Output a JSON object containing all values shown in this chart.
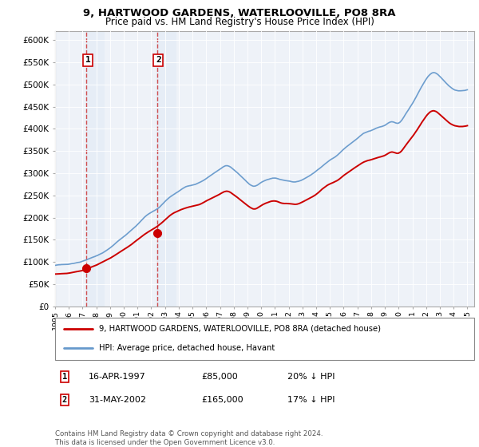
{
  "title1": "9, HARTWOOD GARDENS, WATERLOOVILLE, PO8 8RA",
  "title2": "Price paid vs. HM Land Registry's House Price Index (HPI)",
  "ylabel_ticks": [
    "£0",
    "£50K",
    "£100K",
    "£150K",
    "£200K",
    "£250K",
    "£300K",
    "£350K",
    "£400K",
    "£450K",
    "£500K",
    "£550K",
    "£600K"
  ],
  "ytick_values": [
    0,
    50000,
    100000,
    150000,
    200000,
    250000,
    300000,
    350000,
    400000,
    450000,
    500000,
    550000,
    600000
  ],
  "sale1_date": 1997.29,
  "sale1_price": 85000,
  "sale2_date": 2002.41,
  "sale2_price": 165000,
  "legend_line1": "9, HARTWOOD GARDENS, WATERLOOVILLE, PO8 8RA (detached house)",
  "legend_line2": "HPI: Average price, detached house, Havant",
  "table_row1": [
    "1",
    "16-APR-1997",
    "£85,000",
    "20% ↓ HPI"
  ],
  "table_row2": [
    "2",
    "31-MAY-2002",
    "£165,000",
    "17% ↓ HPI"
  ],
  "footnote": "Contains HM Land Registry data © Crown copyright and database right 2024.\nThis data is licensed under the Open Government Licence v3.0.",
  "hpi_color": "#6699cc",
  "price_color": "#cc0000",
  "sale_marker_color": "#cc0000",
  "vline_color": "#cc3333",
  "shading_color": "#dde8f5",
  "background_color": "#eef2f8",
  "grid_color": "#ffffff",
  "xmin": 1995,
  "xmax": 2025.5,
  "ymin": 0,
  "ymax": 620000,
  "hpi_keypoints_x": [
    1995.0,
    1995.5,
    1996.0,
    1996.5,
    1997.0,
    1997.5,
    1998.0,
    1998.5,
    1999.0,
    1999.5,
    2000.0,
    2000.5,
    2001.0,
    2001.5,
    2002.0,
    2002.5,
    2003.0,
    2003.5,
    2004.0,
    2004.5,
    2005.0,
    2005.5,
    2006.0,
    2006.5,
    2007.0,
    2007.5,
    2008.0,
    2008.5,
    2009.0,
    2009.5,
    2010.0,
    2010.5,
    2011.0,
    2011.5,
    2012.0,
    2012.5,
    2013.0,
    2013.5,
    2014.0,
    2014.5,
    2015.0,
    2015.5,
    2016.0,
    2016.5,
    2017.0,
    2017.5,
    2018.0,
    2018.5,
    2019.0,
    2019.5,
    2020.0,
    2020.5,
    2021.0,
    2021.5,
    2022.0,
    2022.5,
    2023.0,
    2023.5,
    2024.0,
    2024.5,
    2025.0
  ],
  "hpi_keypoints_y": [
    90000,
    92000,
    93000,
    96000,
    100000,
    106000,
    112000,
    120000,
    130000,
    143000,
    155000,
    168000,
    182000,
    198000,
    210000,
    220000,
    235000,
    248000,
    258000,
    268000,
    272000,
    278000,
    287000,
    298000,
    308000,
    316000,
    307000,
    293000,
    278000,
    270000,
    278000,
    285000,
    288000,
    284000,
    282000,
    280000,
    285000,
    294000,
    305000,
    318000,
    330000,
    340000,
    355000,
    368000,
    380000,
    392000,
    398000,
    405000,
    410000,
    418000,
    415000,
    435000,
    460000,
    488000,
    515000,
    530000,
    522000,
    505000,
    492000,
    488000,
    490000
  ],
  "prop_keypoints_x": [
    1995.0,
    1995.5,
    1996.0,
    1996.5,
    1997.0,
    1997.5,
    1998.0,
    1998.5,
    1999.0,
    1999.5,
    2000.0,
    2000.5,
    2001.0,
    2001.5,
    2002.0,
    2002.5,
    2003.0,
    2003.5,
    2004.0,
    2004.5,
    2005.0,
    2005.5,
    2006.0,
    2006.5,
    2007.0,
    2007.5,
    2008.0,
    2008.5,
    2009.0,
    2009.5,
    2010.0,
    2010.5,
    2011.0,
    2011.5,
    2012.0,
    2012.5,
    2013.0,
    2013.5,
    2014.0,
    2014.5,
    2015.0,
    2015.5,
    2016.0,
    2016.5,
    2017.0,
    2017.5,
    2018.0,
    2018.5,
    2019.0,
    2019.5,
    2020.0,
    2020.5,
    2021.0,
    2021.5,
    2022.0,
    2022.5,
    2023.0,
    2023.5,
    2024.0,
    2024.5,
    2025.0
  ],
  "prop_keypoints_y": [
    72000,
    73000,
    74000,
    77000,
    80000,
    86000,
    92000,
    100000,
    108000,
    118000,
    128000,
    138000,
    150000,
    162000,
    172000,
    182000,
    195000,
    208000,
    216000,
    222000,
    226000,
    230000,
    238000,
    246000,
    254000,
    260000,
    252000,
    240000,
    228000,
    220000,
    228000,
    235000,
    238000,
    233000,
    232000,
    230000,
    235000,
    243000,
    252000,
    265000,
    275000,
    282000,
    294000,
    305000,
    315000,
    325000,
    330000,
    335000,
    340000,
    348000,
    345000,
    362000,
    382000,
    405000,
    428000,
    440000,
    432000,
    418000,
    408000,
    405000,
    407000
  ]
}
